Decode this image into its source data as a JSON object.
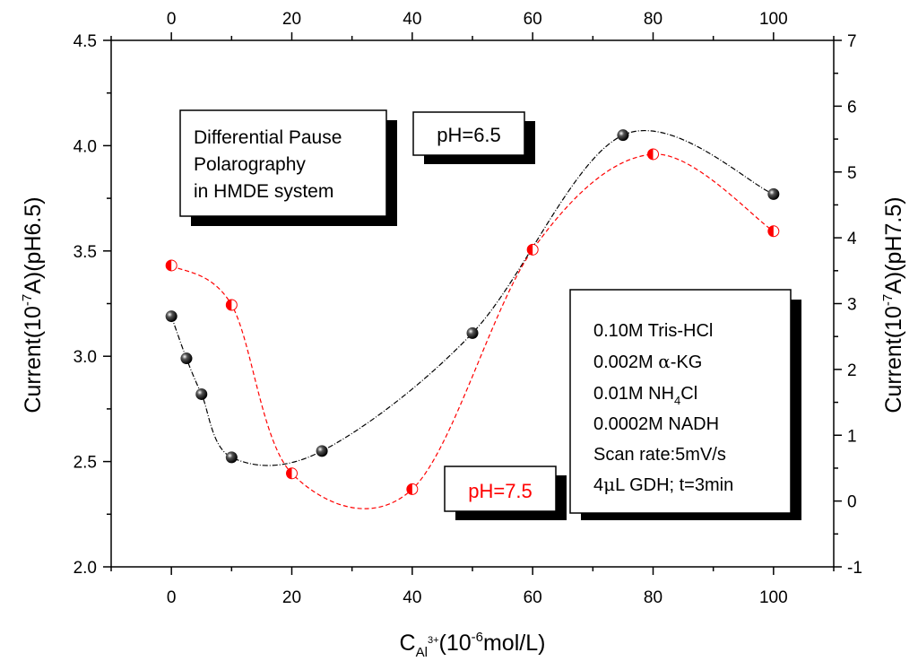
{
  "chart_data": {
    "type": "scatter",
    "title": "",
    "xlabel": {
      "main": "C",
      "sub": "Al",
      "sup": "3+",
      "unit_pre": "(10",
      "unit_exp": "-6",
      "unit_post": "mol/L)"
    },
    "ylabel_left": {
      "pre": "Current(10",
      "exp": "-7",
      "post": "A)(pH6.5)"
    },
    "ylabel_right": {
      "pre": "Current(10",
      "exp": "-7",
      "post": "A)(pH7.5)"
    },
    "xlim": [
      -10,
      110
    ],
    "ylim_left": [
      2.0,
      4.5
    ],
    "ylim_right": [
      -1,
      7
    ],
    "x_ticks": [
      "0",
      "20",
      "40",
      "60",
      "80",
      "100"
    ],
    "x_tick_values": [
      0,
      20,
      40,
      60,
      80,
      100
    ],
    "y_left_ticks": [
      "2.0",
      "2.5",
      "3.0",
      "3.5",
      "4.0",
      "4.5"
    ],
    "y_left_tick_values": [
      2.0,
      2.5,
      3.0,
      3.5,
      4.0,
      4.5
    ],
    "y_right_ticks": [
      "-1",
      "0",
      "1",
      "2",
      "3",
      "4",
      "5",
      "6",
      "7"
    ],
    "y_right_tick_values": [
      -1,
      0,
      1,
      2,
      3,
      4,
      5,
      6,
      7
    ],
    "series": [
      {
        "name": "pH=6.5",
        "axis": "left",
        "color": "#000000",
        "x": [
          0,
          2.5,
          5,
          10,
          25,
          50,
          75,
          100
        ],
        "y": [
          3.19,
          2.99,
          2.82,
          2.52,
          2.55,
          3.11,
          4.05,
          3.77
        ]
      },
      {
        "name": "pH=7.5",
        "axis": "right",
        "color": "#ff0000",
        "x": [
          0,
          10,
          20,
          40,
          60,
          80,
          100
        ],
        "y": [
          3.58,
          2.98,
          0.42,
          0.18,
          3.82,
          5.27,
          4.1
        ]
      }
    ],
    "annotations": {
      "method_box": [
        "Differential Pause",
        "Polarography",
        "in HMDE system"
      ],
      "ph65_label": "pH=6.5",
      "ph75_label": "pH=7.5",
      "conditions": [
        {
          "text": "0.10M Tris-HCl"
        },
        {
          "pre": "0.002M ",
          "greek": "α",
          "post": "-KG"
        },
        {
          "pre": "0.01M NH",
          "sub": "4",
          "post": "Cl"
        },
        {
          "text": "0.0002M NADH"
        },
        {
          "text": "Scan rate:5mV/s"
        },
        {
          "pre": "4",
          "greek": "μ",
          "post": "L GDH; t=3min"
        }
      ]
    }
  }
}
